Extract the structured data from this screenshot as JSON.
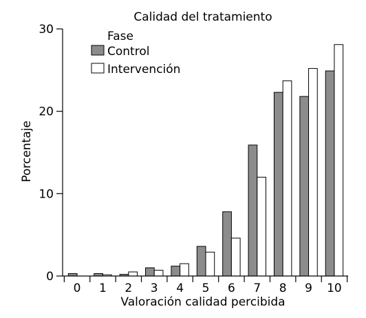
{
  "chart_data": {
    "type": "bar",
    "title": "Calidad del tratamiento",
    "xlabel": "Valoración calidad percibida",
    "ylabel": "Porcentaje",
    "categories": [
      "0",
      "1",
      "2",
      "3",
      "4",
      "5",
      "6",
      "7",
      "8",
      "9",
      "10"
    ],
    "ylim": [
      0,
      30
    ],
    "yticks": [
      0,
      10,
      20,
      30
    ],
    "legend": {
      "title": "Fase",
      "placement": "top-left"
    },
    "grid": false,
    "series": [
      {
        "name": "Control",
        "color": "#8c8c8c",
        "values": [
          0.3,
          0.3,
          0.2,
          1.0,
          1.2,
          3.6,
          7.8,
          15.9,
          22.3,
          21.8,
          24.9
        ]
      },
      {
        "name": "Intervención",
        "color": "#ffffff",
        "values": [
          0.0,
          0.15,
          0.5,
          0.7,
          1.5,
          2.9,
          4.6,
          12.0,
          23.7,
          25.2,
          28.1
        ]
      }
    ]
  }
}
